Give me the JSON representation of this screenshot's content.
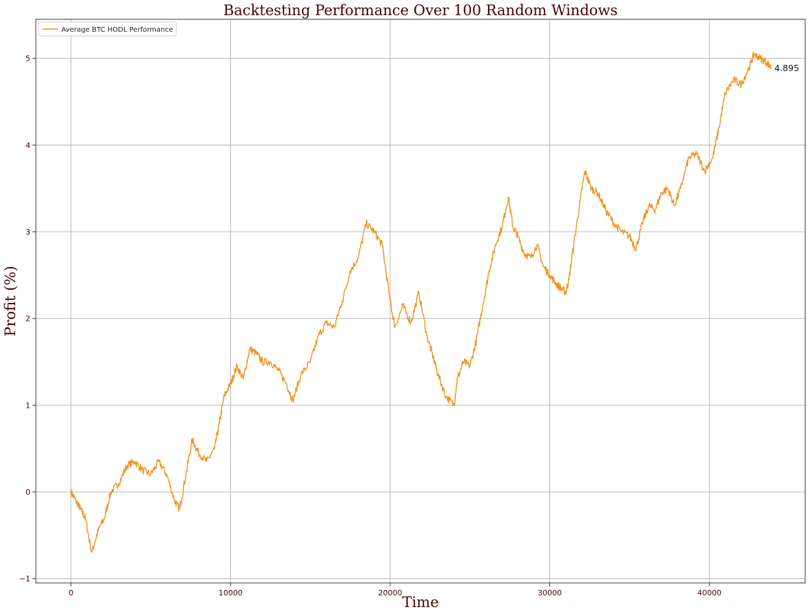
{
  "chart_data": {
    "type": "line",
    "title": "Backtesting Performance Over 100 Random Windows",
    "xlabel": "Time",
    "ylabel": "Profit (%)",
    "xlim": [
      -2200,
      46000
    ],
    "ylim": [
      -1.05,
      5.45
    ],
    "x_ticks": [
      0,
      10000,
      20000,
      30000,
      40000
    ],
    "y_ticks": [
      -1,
      0,
      1,
      2,
      3,
      4,
      5
    ],
    "grid": true,
    "legend_position": "top-left",
    "colors": {
      "series": "#f0931e",
      "text": "#4a0000"
    },
    "series": [
      {
        "name": "Average BTC HODL Performance",
        "x": [
          0,
          300,
          600,
          900,
          1300,
          1700,
          2100,
          2500,
          3000,
          3500,
          4000,
          4500,
          5000,
          5500,
          6000,
          6500,
          6800,
          7200,
          7600,
          8000,
          8500,
          9000,
          9300,
          9600,
          10000,
          10400,
          10800,
          11200,
          11600,
          12000,
          12500,
          13000,
          13500,
          13900,
          14400,
          15000,
          15500,
          16000,
          16500,
          17000,
          17500,
          18000,
          18500,
          19000,
          19500,
          20000,
          20300,
          20800,
          21300,
          21800,
          22300,
          22700,
          23000,
          23500,
          24000,
          24200,
          24600,
          25000,
          25400,
          25800,
          26200,
          26600,
          27000,
          27400,
          27700,
          28000,
          28400,
          28800,
          29200,
          29600,
          30000,
          30400,
          30700,
          31000,
          31200,
          31500,
          31900,
          32200,
          32600,
          33000,
          33500,
          34000,
          34500,
          35000,
          35400,
          35800,
          36200,
          36600,
          37000,
          37400,
          37800,
          38200,
          38700,
          39200,
          39700,
          40200,
          40600,
          41000,
          41500,
          42000,
          42500,
          42800,
          43200,
          43600,
          43900
        ],
        "y": [
          0.0,
          -0.1,
          -0.2,
          -0.3,
          -0.7,
          -0.45,
          -0.3,
          0.0,
          0.1,
          0.3,
          0.35,
          0.25,
          0.2,
          0.35,
          0.2,
          -0.1,
          -0.2,
          0.2,
          0.6,
          0.45,
          0.35,
          0.5,
          0.8,
          1.1,
          1.25,
          1.45,
          1.3,
          1.65,
          1.6,
          1.5,
          1.5,
          1.4,
          1.25,
          1.05,
          1.35,
          1.5,
          1.8,
          1.95,
          1.9,
          2.2,
          2.55,
          2.7,
          3.1,
          3.0,
          2.85,
          2.2,
          1.9,
          2.15,
          1.95,
          2.3,
          1.8,
          1.55,
          1.35,
          1.1,
          1.0,
          1.3,
          1.5,
          1.45,
          1.75,
          2.15,
          2.55,
          2.85,
          3.05,
          3.4,
          3.05,
          2.95,
          2.75,
          2.7,
          2.85,
          2.6,
          2.5,
          2.4,
          2.35,
          2.3,
          2.45,
          2.85,
          3.35,
          3.7,
          3.5,
          3.45,
          3.25,
          3.1,
          3.0,
          2.95,
          2.8,
          3.1,
          3.3,
          3.25,
          3.45,
          3.5,
          3.3,
          3.5,
          3.85,
          3.9,
          3.7,
          3.85,
          4.2,
          4.6,
          4.75,
          4.7,
          4.9,
          5.05,
          5.0,
          4.95,
          4.89
        ]
      }
    ],
    "annotations": [
      {
        "x": 43900,
        "y": 4.895,
        "text": "4.895"
      }
    ]
  }
}
